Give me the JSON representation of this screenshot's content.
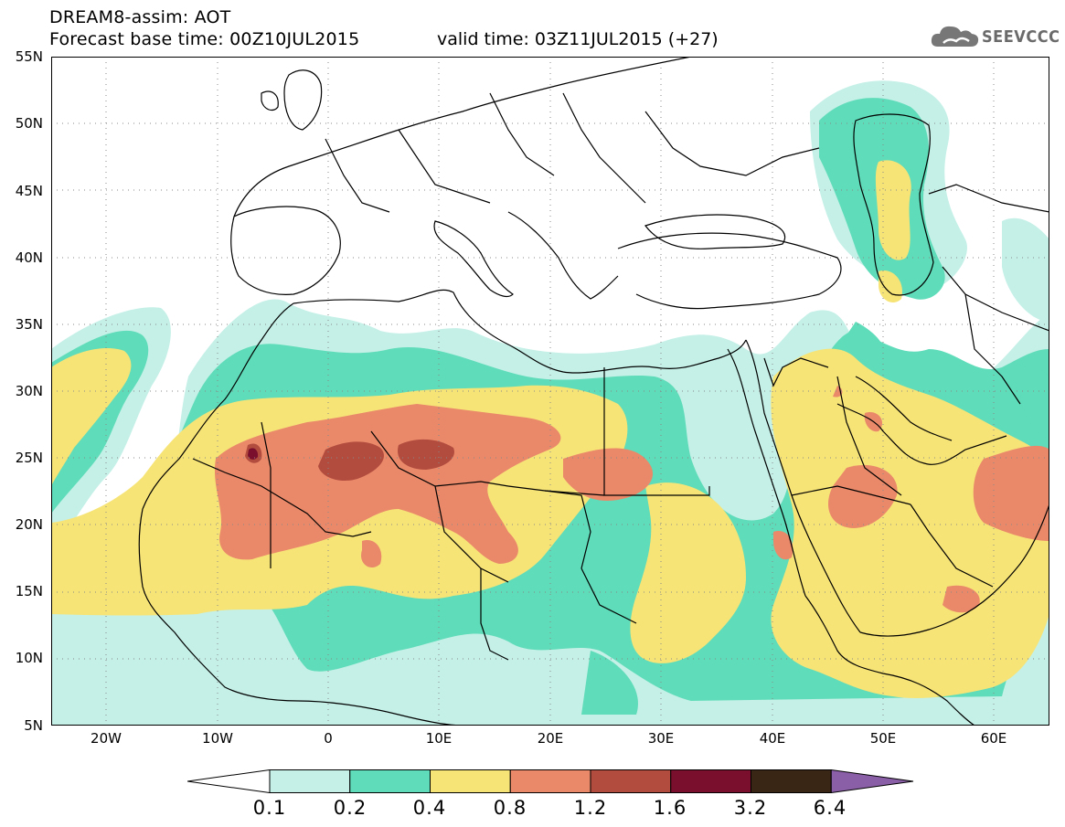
{
  "header": {
    "title": "DREAM8-assim: AOT",
    "base_time": "Forecast base time: 00Z10JUL2015",
    "valid_time": "valid time: 03Z11JUL2015 (+27)"
  },
  "logo": {
    "text": "SEEVCCC",
    "icon": "cloud-icon"
  },
  "map": {
    "extent": {
      "lon_min": -25,
      "lon_max": 65,
      "lat_min": 5,
      "lat_max": 55
    },
    "lat_labels": [
      "55N",
      "50N",
      "45N",
      "40N",
      "35N",
      "30N",
      "25N",
      "20N",
      "15N",
      "10N",
      "5N"
    ],
    "lon_labels": [
      "20W",
      "10W",
      "0",
      "10E",
      "20E",
      "30E",
      "40E",
      "50E",
      "60E"
    ],
    "gridlines": "dotted"
  },
  "legend": {
    "levels": [
      "0.1",
      "0.2",
      "0.4",
      "0.8",
      "1.2",
      "1.6",
      "3.2",
      "6.4"
    ],
    "colors": [
      "#ffffff",
      "#c4f0e7",
      "#5fdcb9",
      "#f7e477",
      "#e9896a",
      "#b24c3e",
      "#7a0f2d",
      "#3a2615",
      "#8b5fa7"
    ]
  }
}
